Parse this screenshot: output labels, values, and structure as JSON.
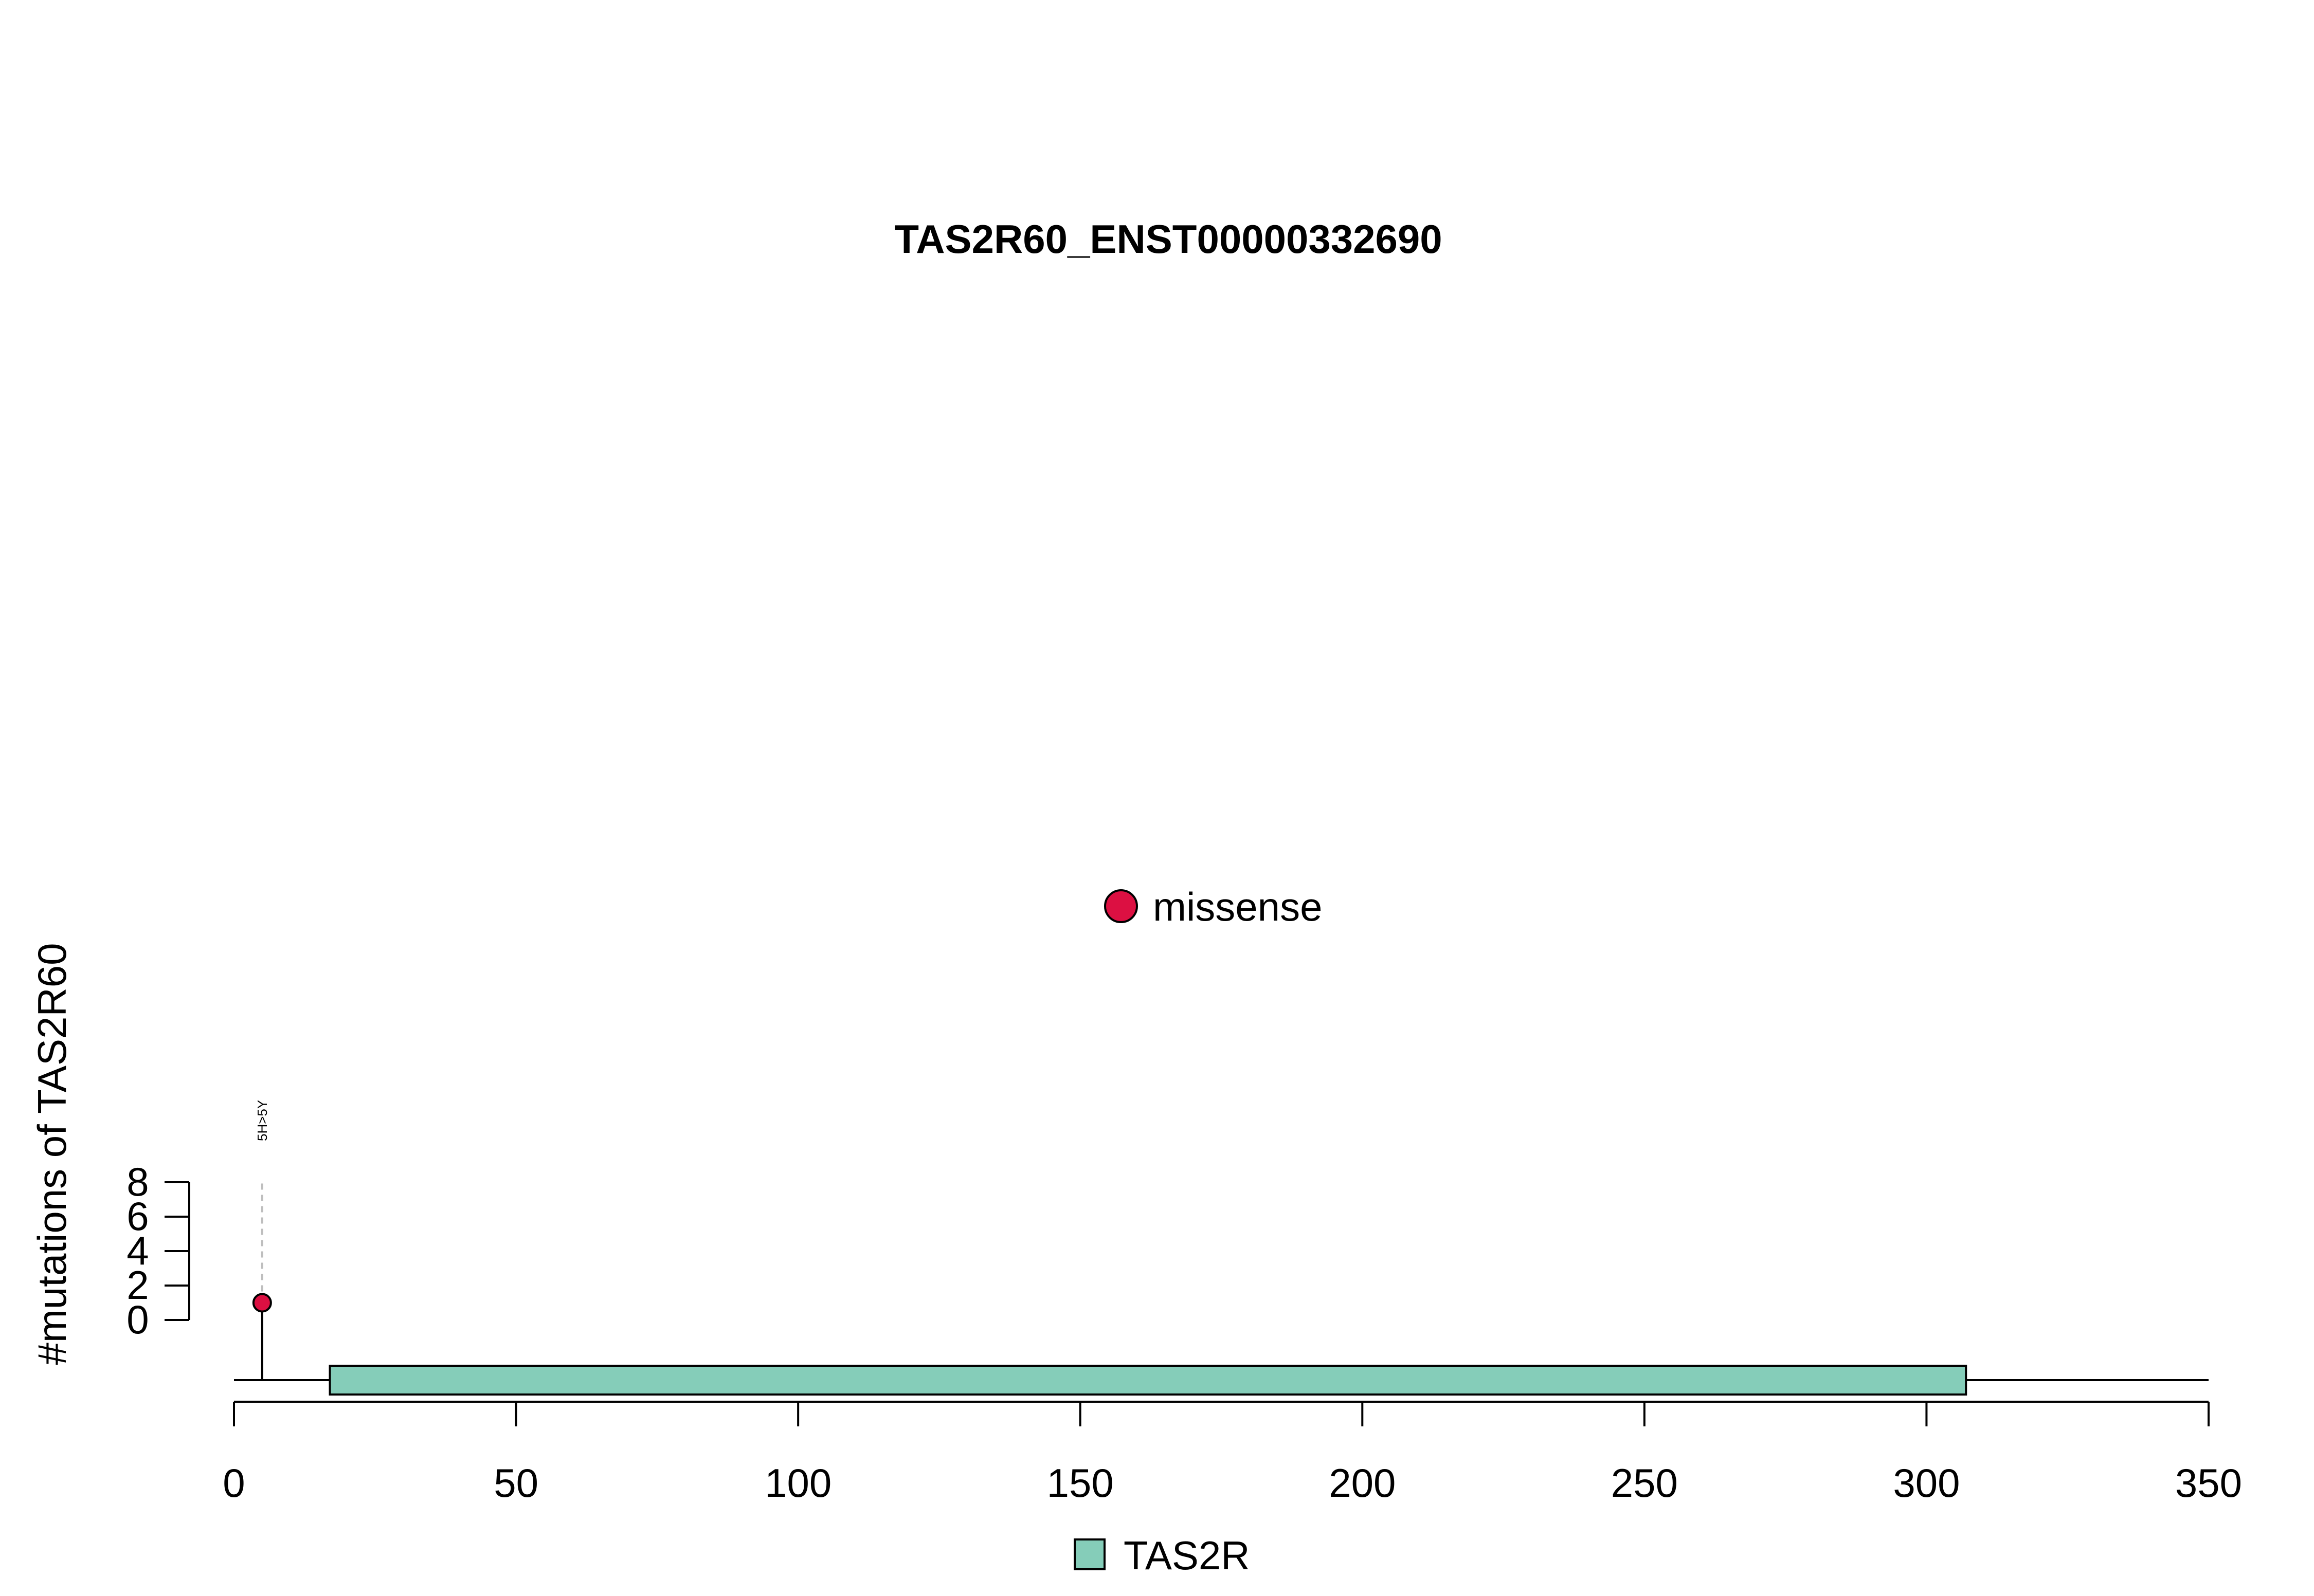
{
  "chart_data": {
    "type": "lollipop",
    "title": "TAS2R60_ENST00000332690",
    "ylabel": "#mutations of TAS2R60",
    "xlabel": "",
    "protein_length": 350,
    "xlim": [
      0,
      350
    ],
    "x_ticks": [
      0,
      50,
      100,
      150,
      200,
      250,
      300,
      350
    ],
    "y_ticks": [
      0,
      2,
      4,
      6,
      8
    ],
    "ylim": [
      0,
      8
    ],
    "domains": [
      {
        "name": "TAS2R",
        "start": 17,
        "end": 307,
        "color": "#85CDB9"
      }
    ],
    "mutations": [
      {
        "position": 5,
        "count": 1,
        "label": "5H>5Y",
        "type": "missense",
        "color": "#DC1042"
      }
    ],
    "mutation_legend": [
      {
        "label": "missense",
        "color": "#DC1042"
      }
    ],
    "domain_legend": [
      {
        "label": "TAS2R",
        "color": "#85CDB9"
      }
    ]
  }
}
